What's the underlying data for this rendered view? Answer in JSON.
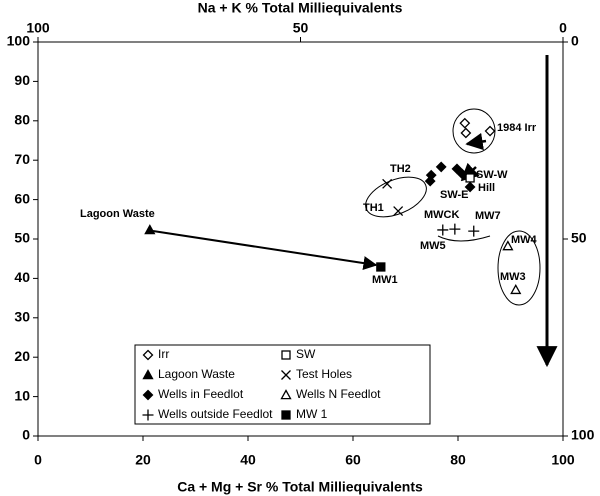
{
  "chart_data": {
    "type": "scatter",
    "x_label": "Ca + Mg + Sr % Total Milliequivalents",
    "x2_label": "Na + K % Total Milliequivalents",
    "xlim": [
      0,
      100
    ],
    "xticks": [
      0,
      20,
      40,
      60,
      80,
      100
    ],
    "ylim": [
      0,
      100
    ],
    "yticks": [
      0,
      10,
      20,
      30,
      40,
      50,
      60,
      70,
      80,
      90,
      100
    ],
    "x2lim": [
      100,
      0
    ],
    "x2ticks": [
      100,
      50,
      0
    ],
    "y2lim": [
      100,
      0
    ],
    "y2ticks": [
      100,
      50,
      0
    ],
    "series": [
      {
        "name": "Irr",
        "marker": "diamond-open",
        "color": "#000000",
        "x": [
          81.3,
          81.5,
          86.1
        ],
        "y": [
          79.4,
          76.9,
          77.4
        ]
      },
      {
        "name": "SW",
        "marker": "square-open",
        "color": "#000000",
        "x": [
          82.3
        ],
        "y": [
          65.5
        ]
      },
      {
        "name": "Lagoon Waste",
        "marker": "triangle",
        "color": "#000000",
        "x": [
          21.3
        ],
        "y": [
          52.3
        ]
      },
      {
        "name": "Test Holes",
        "marker": "x",
        "color": "#000000",
        "x": [
          66.5,
          68.6
        ],
        "y": [
          64,
          57.1
        ]
      },
      {
        "name": "Wells in Feedlot",
        "marker": "diamond",
        "color": "#000000",
        "x": [
          76.8,
          79.8,
          74.9,
          74.7,
          80.8,
          82.3
        ],
        "y": [
          68.3,
          67.8,
          66.2,
          64.7,
          66.5,
          63.2
        ]
      },
      {
        "name": "Wells N Feedlot",
        "marker": "triangle-open",
        "color": "#000000",
        "x": [
          89.5,
          91
        ],
        "y": [
          48.2,
          37.1
        ]
      },
      {
        "name": "Wells outside Feedlot",
        "marker": "plus",
        "color": "#000000",
        "x": [
          77.1,
          79.4,
          83
        ],
        "y": [
          52.3,
          52.5,
          52
        ]
      },
      {
        "name": "MW 1",
        "marker": "square",
        "color": "#000000",
        "x": [
          65.3
        ],
        "y": [
          42.9
        ]
      }
    ],
    "annotations": [
      "1984 Irr",
      "SW-W",
      "Hill",
      "SW-E",
      "TH2",
      "TH1",
      "MWCK",
      "MW7",
      "MW5",
      "MW4",
      "MW3",
      "MW1",
      "Lagoon Waste"
    ]
  }
}
